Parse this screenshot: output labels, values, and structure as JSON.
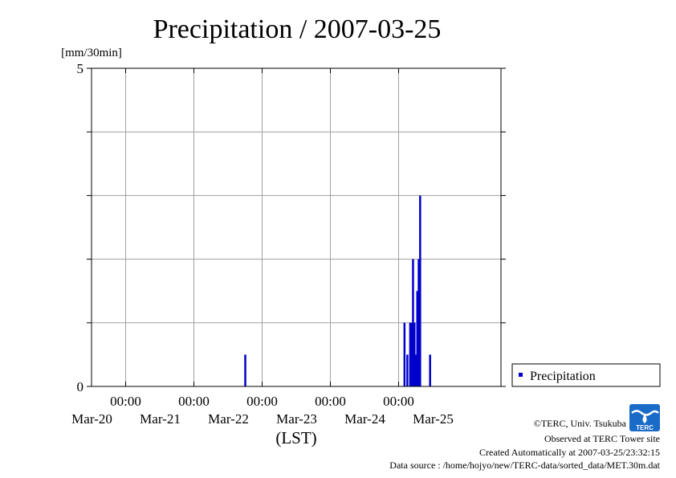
{
  "chart_data": {
    "type": "bar",
    "title": "Precipitation / 2007-03-25",
    "ylabel": "[mm/30min]",
    "xlabel": "(LST)",
    "ylim": [
      0,
      5
    ],
    "yticks": [
      "0",
      "5"
    ],
    "xlim": [
      "2007-03-19 12:00",
      "2007-03-25 12:00"
    ],
    "xticks": [
      {
        "time": "2007-03-20 00:00",
        "hour": "00:00",
        "date": "Mar-20"
      },
      {
        "time": "2007-03-21 00:00",
        "hour": "00:00",
        "date": "Mar-21"
      },
      {
        "time": "2007-03-22 00:00",
        "hour": "00:00",
        "date": "Mar-22"
      },
      {
        "time": "2007-03-23 00:00",
        "hour": "00:00",
        "date": "Mar-23"
      },
      {
        "time": "2007-03-24 00:00",
        "hour": "00:00",
        "date": "Mar-24"
      }
    ],
    "xdatelabels": [
      {
        "time": "2007-03-20 00:00",
        "date": "Mar-20"
      },
      {
        "time": "2007-03-21 00:00",
        "date": "Mar-21"
      },
      {
        "time": "2007-03-22 00:00",
        "date": "Mar-22"
      },
      {
        "time": "2007-03-23 00:00",
        "date": "Mar-23"
      },
      {
        "time": "2007-03-24 00:00",
        "date": "Mar-24"
      },
      {
        "time": "2007-03-25 00:00",
        "date": "Mar-25"
      }
    ],
    "grid": true,
    "legend_position": "right",
    "series": [
      {
        "name": "Precipitation",
        "color": "#0000cc",
        "points": [
          {
            "x": "2007-03-21 18:00",
            "y": 0.5
          },
          {
            "x": "2007-03-24 02:00",
            "y": 1.0
          },
          {
            "x": "2007-03-24 03:00",
            "y": 0.5
          },
          {
            "x": "2007-03-24 04:00",
            "y": 1.0
          },
          {
            "x": "2007-03-24 04:30",
            "y": 1.0
          },
          {
            "x": "2007-03-24 05:00",
            "y": 2.0
          },
          {
            "x": "2007-03-24 05:30",
            "y": 1.0
          },
          {
            "x": "2007-03-24 06:00",
            "y": 0.5
          },
          {
            "x": "2007-03-24 06:30",
            "y": 1.5
          },
          {
            "x": "2007-03-24 07:00",
            "y": 2.0
          },
          {
            "x": "2007-03-24 07:30",
            "y": 3.0
          },
          {
            "x": "2007-03-24 11:00",
            "y": 0.5
          }
        ]
      }
    ]
  },
  "credits": {
    "copyright": "©TERC, Univ. Tsukuba",
    "observed": "Observed at TERC Tower site",
    "created": "Created Automatically at 2007-03-25/23:32:15",
    "source": "Data source : /home/hojyo/new/TERC-data/sorted_data/MET.30m.dat"
  },
  "logo": {
    "text": "TERC",
    "color": "#1a6ac8"
  }
}
